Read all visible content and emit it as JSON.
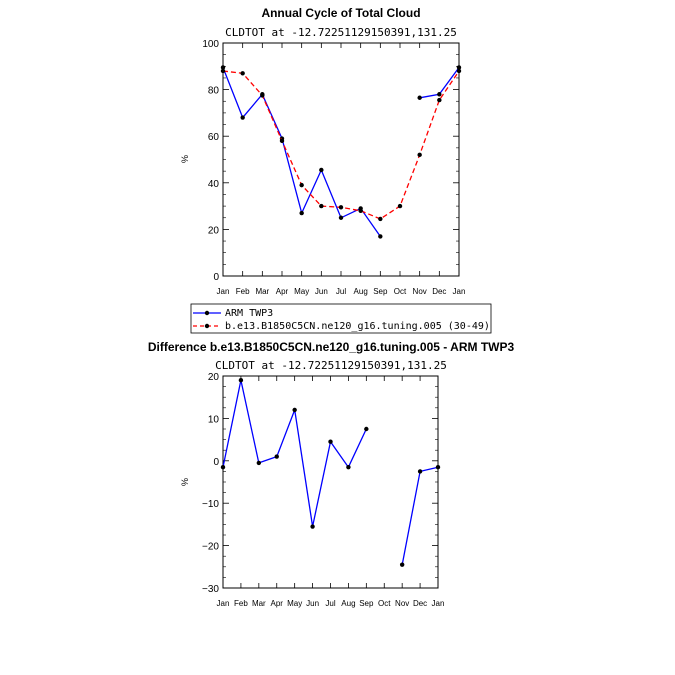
{
  "chart_data": [
    {
      "type": "line",
      "title": "Annual Cycle of Total Cloud",
      "subtitle": "CLDTOT at -12.72251129150391,131.25",
      "ylabel": "%",
      "ylim": [
        0,
        100
      ],
      "yticks": [
        "0",
        "20",
        "40",
        "60",
        "80",
        "100"
      ],
      "categories": [
        "Jan",
        "Feb",
        "Mar",
        "Apr",
        "May",
        "Jun",
        "Jul",
        "Aug",
        "Sep",
        "Oct",
        "Nov",
        "Dec",
        "Jan"
      ],
      "series": [
        {
          "name": "ARM TWP3",
          "color": "#0000ff",
          "dash": "solid",
          "values": [
            89.5,
            68,
            78,
            59,
            27,
            45.5,
            25,
            29,
            17,
            null,
            76.5,
            78,
            89.5
          ]
        },
        {
          "name": "b.e13.B1850C5CN.ne120_g16.tuning.005 (30-49)",
          "color": "#ff0000",
          "dash": "dashed",
          "values": [
            88,
            87,
            77.5,
            58,
            39,
            30,
            29.5,
            28,
            24.5,
            30,
            52,
            75.5,
            88
          ]
        }
      ],
      "legend": "below"
    },
    {
      "type": "line",
      "title": "Difference b.e13.B1850C5CN.ne120_g16.tuning.005 - ARM TWP3",
      "subtitle": "CLDTOT at -12.72251129150391,131.25",
      "ylabel": "%",
      "ylim": [
        -30,
        20
      ],
      "yticks": [
        "−30",
        "−20",
        "−10",
        "0",
        "10",
        "20"
      ],
      "categories": [
        "Jan",
        "Feb",
        "Mar",
        "Apr",
        "May",
        "Jun",
        "Jul",
        "Aug",
        "Sep",
        "Oct",
        "Nov",
        "Dec",
        "Jan"
      ],
      "series": [
        {
          "name": "",
          "color": "#0000ff",
          "dash": "solid",
          "values": [
            -1.5,
            19,
            -0.5,
            1,
            12,
            -15.5,
            4.5,
            -1.5,
            7.5,
            null,
            -24.5,
            -2.5,
            -1.5
          ]
        }
      ]
    }
  ]
}
